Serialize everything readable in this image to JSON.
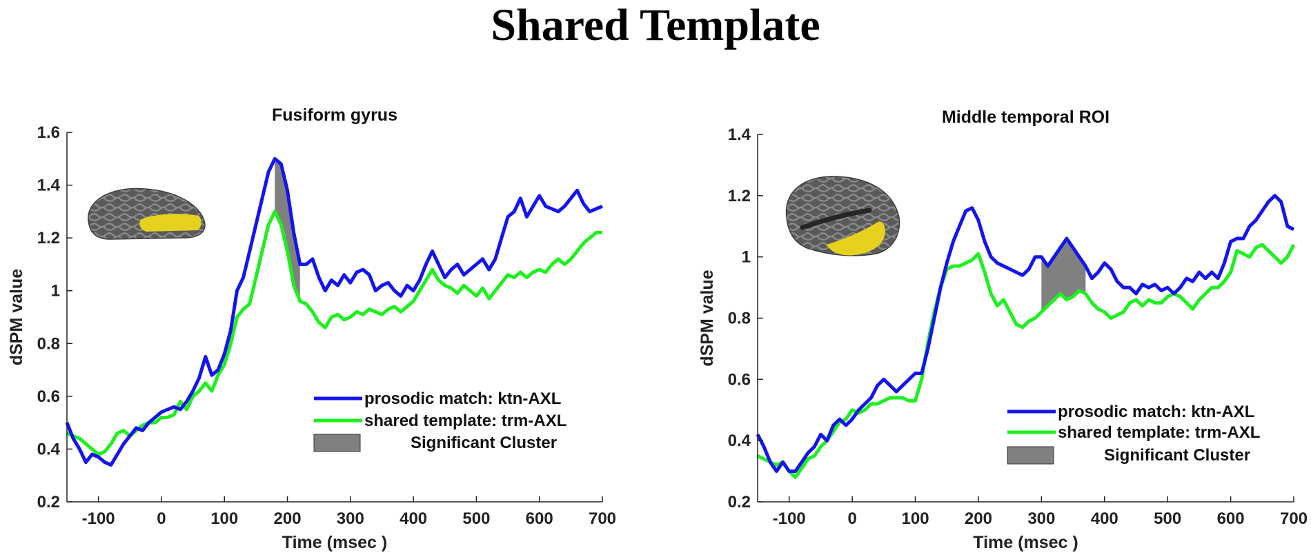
{
  "title": "Shared Template",
  "colors": {
    "prosodic": "#1414f0",
    "shared": "#1ef01e",
    "cluster": "#808080",
    "brain": "#5f5f5f",
    "roi": "#e6d21e"
  },
  "icons": [
    "brain-fusiform-icon",
    "brain-temporal-icon"
  ],
  "chart_data": [
    {
      "type": "line",
      "title": "Fusiform gyrus",
      "xlabel": "Time (msec )",
      "ylabel": "dSPM value",
      "xlim": [
        -150,
        700
      ],
      "ylim": [
        0.2,
        1.6
      ],
      "xticks": [
        -100,
        0,
        100,
        200,
        300,
        400,
        500,
        600,
        700
      ],
      "yticks": [
        0.2,
        0.4,
        0.6,
        0.8,
        1,
        1.2,
        1.4,
        1.6
      ],
      "yticklabels": [
        "0.2",
        "0.4",
        "0.6",
        "0.8",
        "1",
        "1.2",
        "1.4",
        "1.6"
      ],
      "legend": [
        "prosodic match: ktn-AXL",
        "shared template: trm-AXL",
        "Significant Cluster"
      ],
      "legend_position": "bottom-right",
      "cluster": [
        180,
        220
      ],
      "series": [
        {
          "name": "prosodic match: ktn-AXL",
          "x": [
            -150,
            -140,
            -130,
            -120,
            -110,
            -100,
            -90,
            -80,
            -70,
            -60,
            -50,
            -40,
            -30,
            -20,
            -10,
            0,
            10,
            20,
            30,
            40,
            50,
            60,
            70,
            80,
            90,
            100,
            110,
            120,
            130,
            140,
            150,
            160,
            170,
            180,
            190,
            200,
            210,
            220,
            230,
            240,
            250,
            260,
            270,
            280,
            290,
            300,
            310,
            320,
            330,
            340,
            350,
            360,
            370,
            380,
            390,
            400,
            410,
            420,
            430,
            440,
            450,
            460,
            470,
            480,
            490,
            500,
            510,
            520,
            530,
            540,
            550,
            560,
            570,
            580,
            590,
            600,
            610,
            620,
            630,
            640,
            650,
            660,
            670,
            680,
            690,
            700
          ],
          "y": [
            0.5,
            0.44,
            0.4,
            0.35,
            0.38,
            0.37,
            0.35,
            0.34,
            0.38,
            0.42,
            0.45,
            0.48,
            0.47,
            0.5,
            0.52,
            0.54,
            0.55,
            0.56,
            0.55,
            0.58,
            0.62,
            0.67,
            0.75,
            0.68,
            0.7,
            0.76,
            0.85,
            1.0,
            1.05,
            1.15,
            1.25,
            1.35,
            1.45,
            1.5,
            1.48,
            1.38,
            1.22,
            1.1,
            1.1,
            1.12,
            1.05,
            1.0,
            1.04,
            1.02,
            1.06,
            1.03,
            1.07,
            1.08,
            1.06,
            1.0,
            1.02,
            1.03,
            1.0,
            0.98,
            1.02,
            1.0,
            1.04,
            1.1,
            1.15,
            1.1,
            1.05,
            1.08,
            1.1,
            1.06,
            1.08,
            1.1,
            1.12,
            1.08,
            1.12,
            1.2,
            1.28,
            1.3,
            1.35,
            1.28,
            1.32,
            1.36,
            1.32,
            1.31,
            1.3,
            1.32,
            1.35,
            1.38,
            1.33,
            1.3,
            1.31,
            1.32
          ]
        },
        {
          "name": "shared template: trm-AXL",
          "x": [
            -150,
            -140,
            -130,
            -120,
            -110,
            -100,
            -90,
            -80,
            -70,
            -60,
            -50,
            -40,
            -30,
            -20,
            -10,
            0,
            10,
            20,
            30,
            40,
            50,
            60,
            70,
            80,
            90,
            100,
            110,
            120,
            130,
            140,
            150,
            160,
            170,
            180,
            190,
            200,
            210,
            220,
            230,
            240,
            250,
            260,
            270,
            280,
            290,
            300,
            310,
            320,
            330,
            340,
            350,
            360,
            370,
            380,
            390,
            400,
            410,
            420,
            430,
            440,
            450,
            460,
            470,
            480,
            490,
            500,
            510,
            520,
            530,
            540,
            550,
            560,
            570,
            580,
            590,
            600,
            610,
            620,
            630,
            640,
            650,
            660,
            670,
            680,
            690,
            700
          ],
          "y": [
            0.46,
            0.45,
            0.44,
            0.42,
            0.4,
            0.38,
            0.39,
            0.42,
            0.46,
            0.47,
            0.45,
            0.47,
            0.49,
            0.5,
            0.5,
            0.52,
            0.52,
            0.53,
            0.58,
            0.55,
            0.6,
            0.62,
            0.65,
            0.62,
            0.68,
            0.72,
            0.8,
            0.9,
            0.93,
            0.95,
            1.05,
            1.15,
            1.25,
            1.3,
            1.25,
            1.15,
            1.02,
            0.96,
            0.95,
            0.92,
            0.88,
            0.86,
            0.9,
            0.91,
            0.89,
            0.9,
            0.92,
            0.91,
            0.93,
            0.92,
            0.91,
            0.93,
            0.94,
            0.92,
            0.94,
            0.96,
            1.0,
            1.04,
            1.08,
            1.04,
            1.02,
            1.01,
            0.99,
            1.02,
            1.0,
            0.98,
            1.01,
            0.97,
            1.0,
            1.03,
            1.06,
            1.05,
            1.07,
            1.05,
            1.07,
            1.08,
            1.07,
            1.1,
            1.12,
            1.1,
            1.12,
            1.15,
            1.18,
            1.2,
            1.22,
            1.22
          ]
        }
      ]
    },
    {
      "type": "line",
      "title": "Middle temporal ROI",
      "xlabel": "Time (msec )",
      "ylabel": "dSPM value",
      "xlim": [
        -150,
        700
      ],
      "ylim": [
        0.2,
        1.4
      ],
      "xticks": [
        -100,
        0,
        100,
        200,
        300,
        400,
        500,
        600,
        700
      ],
      "yticks": [
        0.2,
        0.4,
        0.6,
        0.8,
        1,
        1.2,
        1.4
      ],
      "yticklabels": [
        "0.2",
        "0.4",
        "0.6",
        "0.8",
        "1",
        "1.2",
        "1.4"
      ],
      "legend": [
        "prosodic match: ktn-AXL",
        "shared template: trm-AXL",
        "Significant Cluster"
      ],
      "legend_position": "bottom-right",
      "cluster": [
        300,
        375
      ],
      "series": [
        {
          "name": "prosodic match: ktn-AXL",
          "x": [
            -150,
            -140,
            -130,
            -120,
            -110,
            -100,
            -90,
            -80,
            -70,
            -60,
            -50,
            -40,
            -30,
            -20,
            -10,
            0,
            10,
            20,
            30,
            40,
            50,
            60,
            70,
            80,
            90,
            100,
            110,
            120,
            130,
            140,
            150,
            160,
            170,
            180,
            190,
            200,
            210,
            220,
            230,
            240,
            250,
            260,
            270,
            280,
            290,
            300,
            310,
            320,
            330,
            340,
            350,
            360,
            370,
            380,
            390,
            400,
            410,
            420,
            430,
            440,
            450,
            460,
            470,
            480,
            490,
            500,
            510,
            520,
            530,
            540,
            550,
            560,
            570,
            580,
            590,
            600,
            610,
            620,
            630,
            640,
            650,
            660,
            670,
            680,
            690,
            700
          ],
          "y": [
            0.42,
            0.38,
            0.33,
            0.3,
            0.33,
            0.3,
            0.3,
            0.33,
            0.36,
            0.38,
            0.42,
            0.4,
            0.45,
            0.47,
            0.45,
            0.47,
            0.5,
            0.52,
            0.54,
            0.58,
            0.6,
            0.58,
            0.56,
            0.58,
            0.6,
            0.62,
            0.62,
            0.7,
            0.8,
            0.9,
            0.98,
            1.05,
            1.1,
            1.15,
            1.16,
            1.12,
            1.05,
            1.0,
            0.98,
            0.97,
            0.96,
            0.95,
            0.94,
            0.96,
            1.0,
            1.0,
            0.97,
            1.0,
            1.03,
            1.06,
            1.03,
            1.0,
            0.97,
            0.93,
            0.95,
            0.98,
            0.96,
            0.92,
            0.9,
            0.9,
            0.88,
            0.91,
            0.9,
            0.91,
            0.89,
            0.9,
            0.88,
            0.9,
            0.93,
            0.92,
            0.95,
            0.93,
            0.95,
            0.93,
            0.98,
            1.05,
            1.06,
            1.06,
            1.1,
            1.12,
            1.15,
            1.18,
            1.2,
            1.18,
            1.1,
            1.09
          ]
        },
        {
          "name": "shared template: trm-AXL",
          "x": [
            -150,
            -140,
            -130,
            -120,
            -110,
            -100,
            -90,
            -80,
            -70,
            -60,
            -50,
            -40,
            -30,
            -20,
            -10,
            0,
            10,
            20,
            30,
            40,
            50,
            60,
            70,
            80,
            90,
            100,
            110,
            120,
            130,
            140,
            150,
            160,
            170,
            180,
            190,
            200,
            210,
            220,
            230,
            240,
            250,
            260,
            270,
            280,
            290,
            300,
            310,
            320,
            330,
            340,
            350,
            360,
            370,
            380,
            390,
            400,
            410,
            420,
            430,
            440,
            450,
            460,
            470,
            480,
            490,
            500,
            510,
            520,
            530,
            540,
            550,
            560,
            570,
            580,
            590,
            600,
            610,
            620,
            630,
            640,
            650,
            660,
            670,
            680,
            690,
            700
          ],
          "y": [
            0.35,
            0.34,
            0.33,
            0.32,
            0.33,
            0.3,
            0.28,
            0.31,
            0.34,
            0.35,
            0.38,
            0.4,
            0.43,
            0.46,
            0.47,
            0.5,
            0.49,
            0.5,
            0.52,
            0.52,
            0.53,
            0.54,
            0.54,
            0.54,
            0.53,
            0.53,
            0.6,
            0.72,
            0.82,
            0.9,
            0.96,
            0.97,
            0.97,
            0.98,
            0.99,
            1.01,
            0.95,
            0.88,
            0.84,
            0.86,
            0.82,
            0.78,
            0.77,
            0.79,
            0.8,
            0.82,
            0.84,
            0.86,
            0.88,
            0.86,
            0.87,
            0.89,
            0.88,
            0.85,
            0.83,
            0.82,
            0.8,
            0.81,
            0.82,
            0.85,
            0.86,
            0.84,
            0.86,
            0.85,
            0.85,
            0.87,
            0.88,
            0.87,
            0.85,
            0.83,
            0.86,
            0.88,
            0.9,
            0.9,
            0.92,
            0.95,
            1.02,
            1.01,
            1.0,
            1.03,
            1.04,
            1.02,
            1.0,
            0.98,
            1.0,
            1.04
          ]
        }
      ]
    }
  ]
}
